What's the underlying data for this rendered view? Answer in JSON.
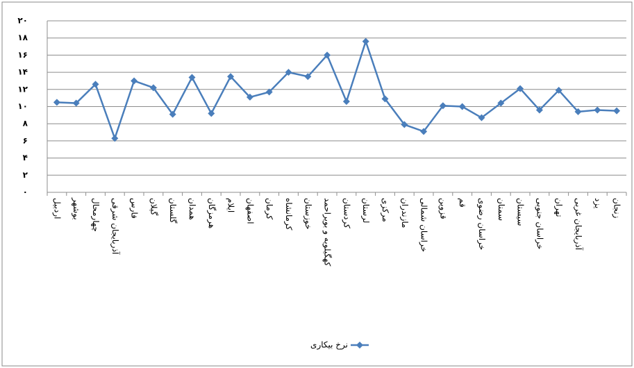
{
  "chart_data": {
    "type": "line",
    "categories": [
      "اردبیل",
      "بوشهر",
      "چهارمحال",
      "آذربایجان شرقی",
      "فارس",
      "گیلان",
      "گلستان",
      "همدان",
      "هرمزگان",
      "ایلام",
      "اصفهان",
      "کرمان",
      "کرمانشاه",
      "خوزستان",
      "کهگیلویه و بویراحمد",
      "کردستان",
      "لرستان",
      "مرکزی",
      "مازندران",
      "خراسان شمالی",
      "قزوین",
      "قم",
      "خراسان رضوی",
      "سمنان",
      "سیستان",
      "خراسان جنوبی",
      "تهران",
      "آذربایجان غربی",
      "یزد",
      "زنجان"
    ],
    "series": [
      {
        "name": "نرخ بیکاری",
        "color": "#4a7ebb",
        "values": [
          10.5,
          10.4,
          12.6,
          6.3,
          13.0,
          12.2,
          9.1,
          13.4,
          9.2,
          13.5,
          11.1,
          11.7,
          14.0,
          13.5,
          16.0,
          10.6,
          17.6,
          10.9,
          7.9,
          7.1,
          10.1,
          10.0,
          8.7,
          10.4,
          12.1,
          9.6,
          11.9,
          9.4,
          9.6,
          9.5
        ]
      }
    ],
    "ylim": [
      0,
      20
    ],
    "yticks": [
      {
        "value": 0,
        "label": "۰"
      },
      {
        "value": 2,
        "label": "۲"
      },
      {
        "value": 4,
        "label": "۴"
      },
      {
        "value": 6,
        "label": "۶"
      },
      {
        "value": 8,
        "label": "۸"
      },
      {
        "value": 10,
        "label": "۱۰"
      },
      {
        "value": 12,
        "label": "۱۲"
      },
      {
        "value": 14,
        "label": "۱۴"
      },
      {
        "value": 16,
        "label": "۱۶"
      },
      {
        "value": 18,
        "label": "۱۸"
      },
      {
        "value": 20,
        "label": "۲۰"
      }
    ],
    "grid": true,
    "legend": "bottom"
  }
}
